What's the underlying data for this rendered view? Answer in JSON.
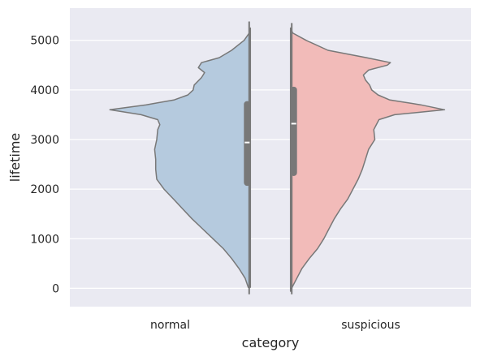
{
  "chart_data": {
    "type": "violin",
    "split": true,
    "xlabel": "category",
    "ylabel": "lifetime",
    "ylim": [
      -370,
      5650
    ],
    "yticks": [
      0,
      1000,
      2000,
      3000,
      4000,
      5000
    ],
    "grid": true,
    "colors": {
      "background": "#EAEAF2",
      "grid": "#FFFFFF",
      "outline": "#787878",
      "box": "#787878",
      "median": "#FFFFFF"
    },
    "categories": [
      "normal",
      "suspicious"
    ],
    "series": [
      {
        "category": "normal",
        "side": "left",
        "fill": "#B5CADE",
        "y_range": [
          20,
          5250
        ],
        "quartiles": [
          2130,
          2940,
          3710
        ],
        "whiskers": [
          -120,
          5380
        ],
        "density": [
          [
            20,
            0.02
          ],
          [
            200,
            0.05
          ],
          [
            400,
            0.11
          ],
          [
            600,
            0.18
          ],
          [
            800,
            0.26
          ],
          [
            1000,
            0.36
          ],
          [
            1200,
            0.46
          ],
          [
            1400,
            0.56
          ],
          [
            1600,
            0.65
          ],
          [
            1800,
            0.74
          ],
          [
            2000,
            0.83
          ],
          [
            2200,
            0.9
          ],
          [
            2400,
            0.91
          ],
          [
            2600,
            0.91
          ],
          [
            2800,
            0.92
          ],
          [
            3000,
            0.9
          ],
          [
            3200,
            0.89
          ],
          [
            3300,
            0.87
          ],
          [
            3400,
            0.89
          ],
          [
            3500,
            1.05
          ],
          [
            3600,
            1.35
          ],
          [
            3700,
            1.0
          ],
          [
            3800,
            0.73
          ],
          [
            3900,
            0.6
          ],
          [
            4000,
            0.55
          ],
          [
            4100,
            0.54
          ],
          [
            4250,
            0.47
          ],
          [
            4350,
            0.44
          ],
          [
            4450,
            0.5
          ],
          [
            4550,
            0.47
          ],
          [
            4650,
            0.3
          ],
          [
            4800,
            0.18
          ],
          [
            5000,
            0.06
          ],
          [
            5150,
            0.01
          ],
          [
            5250,
            0.0
          ]
        ]
      },
      {
        "category": "suspicious",
        "side": "right",
        "fill": "#F2BBB9",
        "y_range": [
          -60,
          5250
        ],
        "quartiles": [
          2330,
          3320,
          4000
        ],
        "whiskers": [
          -120,
          5350
        ],
        "density": [
          [
            -60,
            0.0
          ],
          [
            0,
            0.01
          ],
          [
            200,
            0.06
          ],
          [
            400,
            0.11
          ],
          [
            600,
            0.18
          ],
          [
            800,
            0.26
          ],
          [
            1000,
            0.32
          ],
          [
            1200,
            0.37
          ],
          [
            1400,
            0.42
          ],
          [
            1600,
            0.48
          ],
          [
            1800,
            0.55
          ],
          [
            2000,
            0.6
          ],
          [
            2200,
            0.65
          ],
          [
            2400,
            0.69
          ],
          [
            2600,
            0.72
          ],
          [
            2800,
            0.75
          ],
          [
            3000,
            0.81
          ],
          [
            3200,
            0.8
          ],
          [
            3400,
            0.85
          ],
          [
            3500,
            1.0
          ],
          [
            3600,
            1.48
          ],
          [
            3700,
            1.25
          ],
          [
            3800,
            0.95
          ],
          [
            3900,
            0.84
          ],
          [
            4000,
            0.78
          ],
          [
            4100,
            0.76
          ],
          [
            4200,
            0.72
          ],
          [
            4300,
            0.7
          ],
          [
            4400,
            0.75
          ],
          [
            4500,
            0.93
          ],
          [
            4550,
            0.96
          ],
          [
            4650,
            0.73
          ],
          [
            4800,
            0.36
          ],
          [
            5000,
            0.15
          ],
          [
            5150,
            0.02
          ],
          [
            5250,
            0.0
          ]
        ]
      }
    ]
  }
}
